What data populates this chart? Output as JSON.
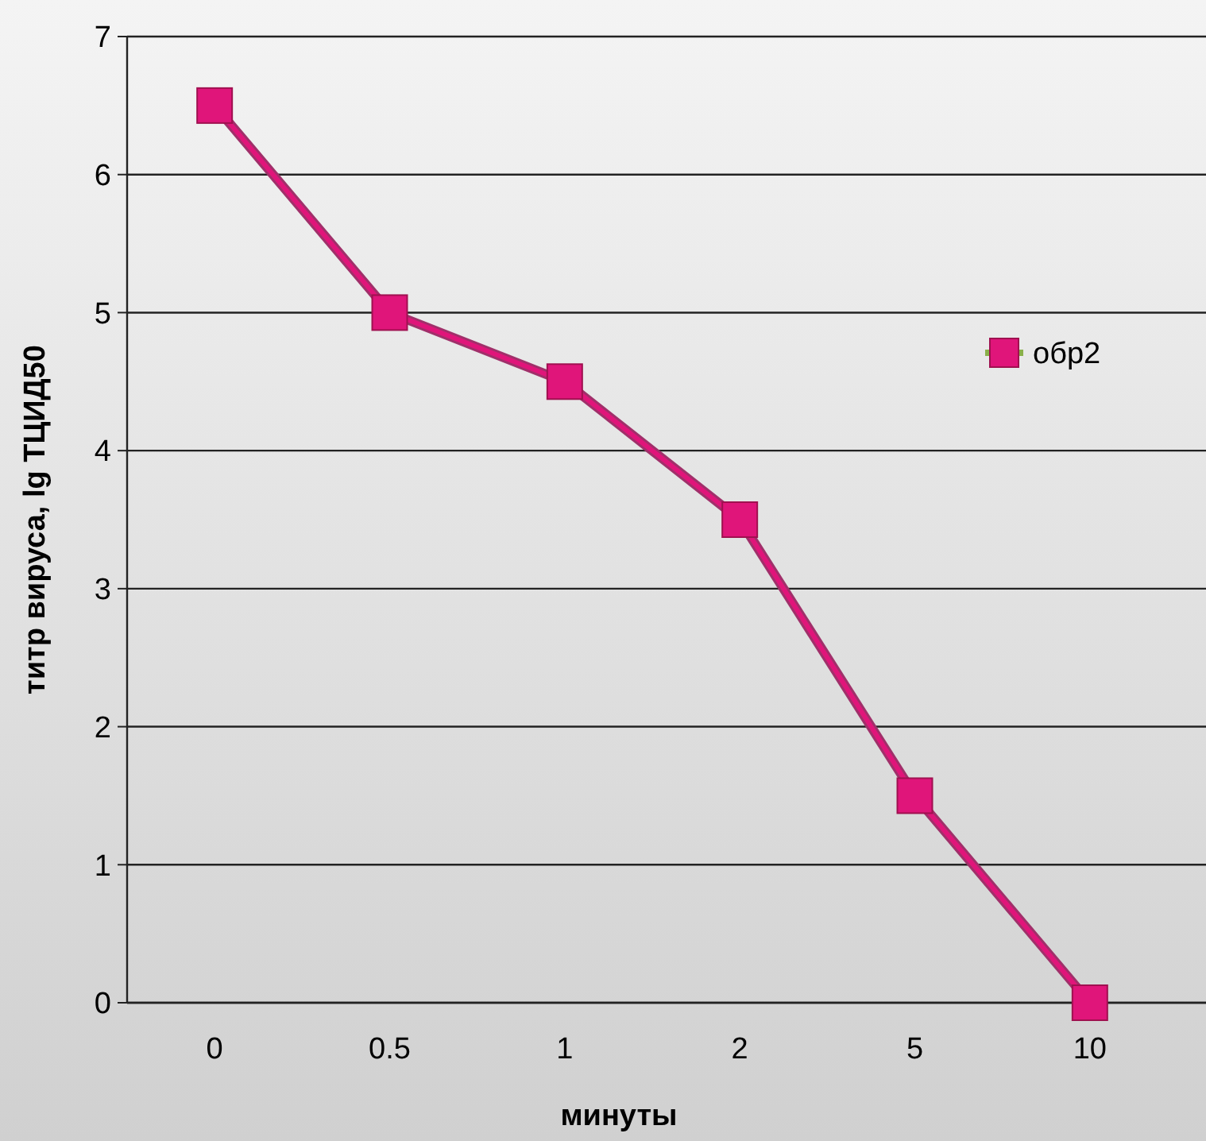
{
  "chart_data": {
    "type": "line",
    "xlabel": "минуты",
    "ylabel": "титр вируса, lg ТЦИД50",
    "categories": [
      "0",
      "0.5",
      "1",
      "2",
      "5",
      "10"
    ],
    "series": [
      {
        "name": "обр2",
        "color": "#e0157a",
        "values": [
          6.5,
          5,
          4.5,
          3.5,
          1.5,
          0
        ]
      }
    ],
    "ylim": [
      0,
      7
    ],
    "yticks": [
      0,
      1,
      2,
      3,
      4,
      5,
      6,
      7
    ],
    "grid": "y",
    "legend": "right",
    "marker": "square",
    "line_style": "solid"
  }
}
